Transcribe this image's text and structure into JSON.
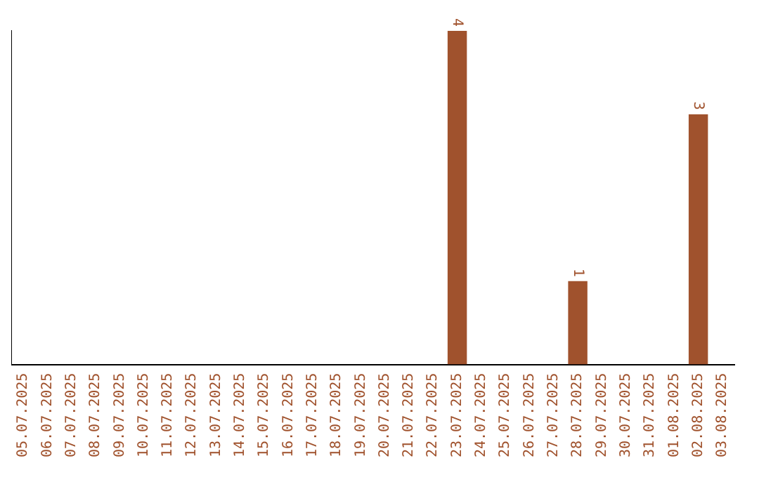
{
  "chart_data": {
    "type": "bar",
    "categories": [
      "05.07.2025",
      "06.07.2025",
      "07.07.2025",
      "08.07.2025",
      "09.07.2025",
      "10.07.2025",
      "11.07.2025",
      "12.07.2025",
      "13.07.2025",
      "14.07.2025",
      "15.07.2025",
      "16.07.2025",
      "17.07.2025",
      "18.07.2025",
      "19.07.2025",
      "20.07.2025",
      "21.07.2025",
      "22.07.2025",
      "23.07.2025",
      "24.07.2025",
      "25.07.2025",
      "26.07.2025",
      "27.07.2025",
      "28.07.2025",
      "29.07.2025",
      "30.07.2025",
      "31.07.2025",
      "01.08.2025",
      "02.08.2025",
      "03.08.2025"
    ],
    "values": [
      null,
      null,
      null,
      null,
      null,
      null,
      null,
      null,
      null,
      null,
      null,
      null,
      null,
      null,
      null,
      null,
      null,
      null,
      4,
      null,
      null,
      null,
      null,
      1,
      null,
      null,
      null,
      null,
      3,
      null
    ],
    "data_labels": true,
    "tick_labels": "x",
    "color": "#a0522d",
    "grid": false,
    "legend": false
  }
}
